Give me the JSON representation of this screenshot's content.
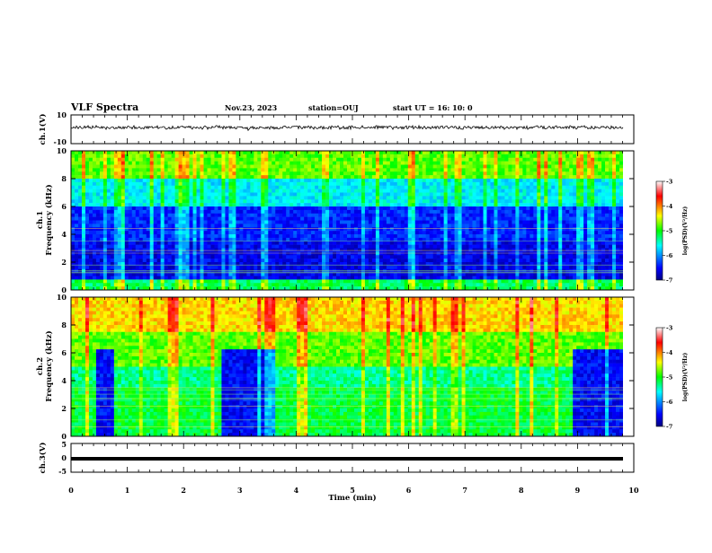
{
  "header": {
    "title": "VLF Spectra",
    "date": "Nov.23, 2023",
    "station": "station=OUJ",
    "start": "start  UT =   16: 10: 0"
  },
  "chart_data": {
    "type": "heatmap",
    "x_axis": {
      "label": "Time  (min)",
      "range": [
        0,
        10
      ],
      "ticks": [
        "0",
        "1",
        "2",
        "3",
        "4",
        "5",
        "6",
        "7",
        "8",
        "9",
        "10"
      ]
    },
    "panels": [
      {
        "id": "ch1-waveform",
        "type": "line",
        "ylabel": "ch.1(V)",
        "ylim": [
          -10,
          10
        ],
        "yticks": [
          "10",
          "-10"
        ]
      },
      {
        "id": "ch1-spectrogram",
        "type": "heatmap",
        "ylabel_top": "ch.1",
        "ylabel": "Frequency  (kHz)",
        "ylim": [
          0,
          10
        ],
        "yticks": [
          "0",
          "2",
          "4",
          "6",
          "8",
          "10"
        ],
        "colorbar": {
          "label": "log(PSD)(V²/Hz)",
          "range": [
            -7,
            -3
          ],
          "ticks": [
            "-3",
            "-4",
            "-5",
            "-6",
            "-7"
          ]
        }
      },
      {
        "id": "ch2-spectrogram",
        "type": "heatmap",
        "ylabel_top": "ch.2",
        "ylabel": "Frequency  (kHz)",
        "ylim": [
          0,
          10
        ],
        "yticks": [
          "0",
          "2",
          "4",
          "6",
          "8",
          "10"
        ],
        "colorbar": {
          "label": "log(PSD)(V²/Hz)",
          "range": [
            -7,
            -3
          ],
          "ticks": [
            "-3",
            "-4",
            "-5",
            "-6",
            "-7"
          ]
        }
      },
      {
        "id": "ch3-waveform",
        "type": "line",
        "ylabel": "ch.3(V)",
        "ylim": [
          -5,
          5
        ],
        "yticks": [
          "5",
          "0",
          "-5"
        ]
      }
    ]
  }
}
